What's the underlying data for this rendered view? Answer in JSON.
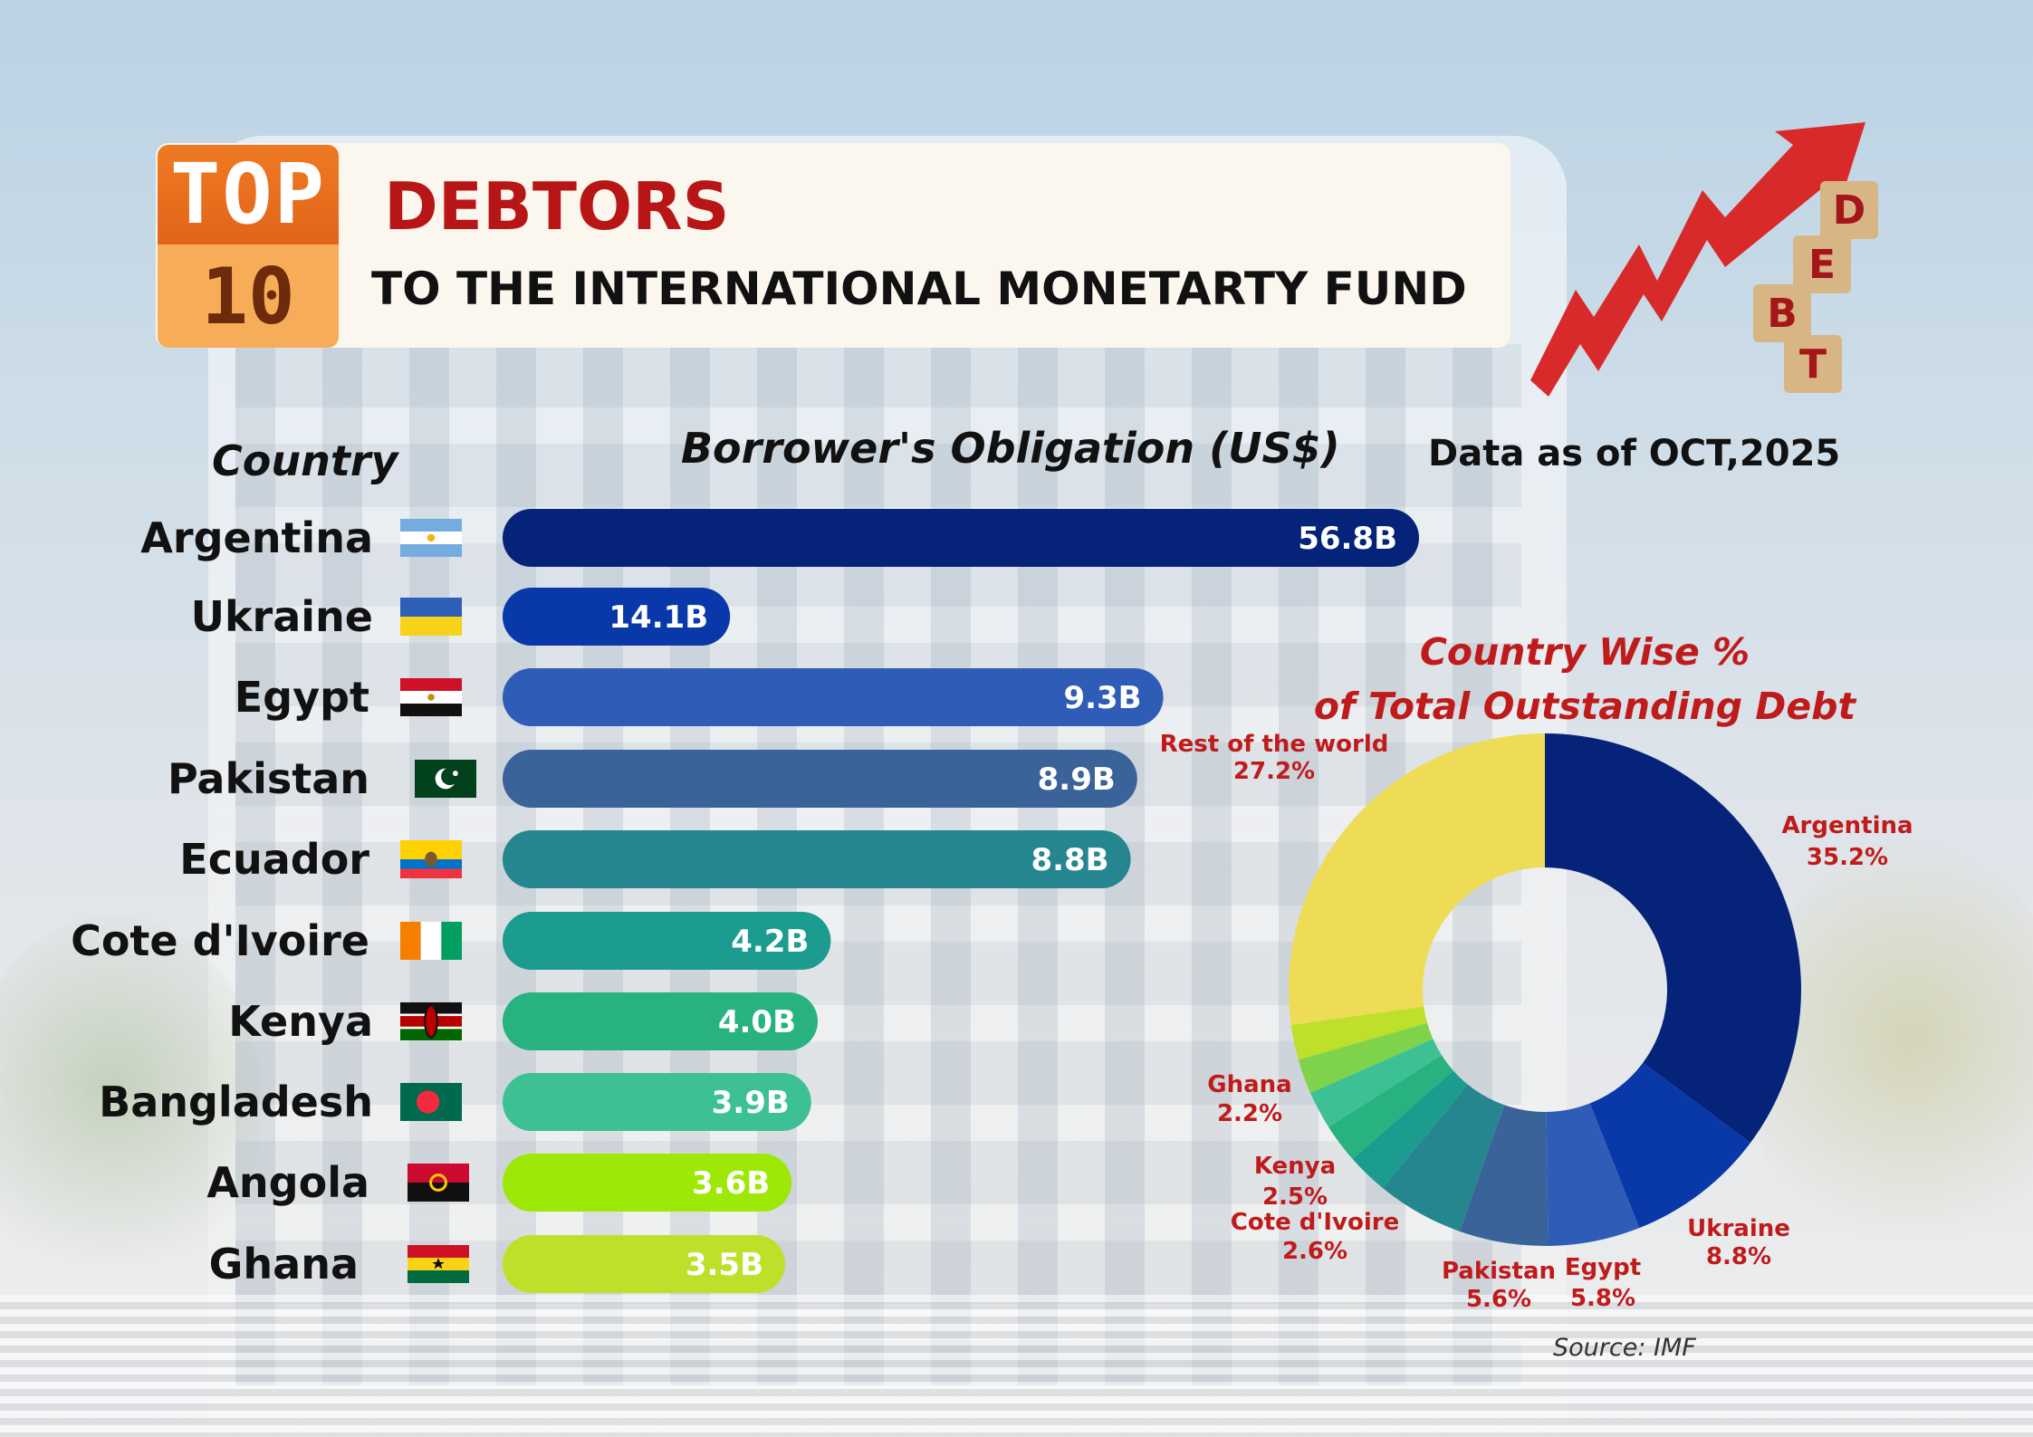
{
  "header": {
    "badge_top": "TOP",
    "badge_bottom": "10",
    "title": "DEBTORS",
    "subtitle": "TO THE INTERNATIONAL MONETARTY FUND"
  },
  "labels": {
    "country_header": "Country",
    "obligation_header": "Borrower's Obligation (US$)",
    "data_date": "Data as of OCT,2025",
    "pie_title_line1": "Country Wise %",
    "pie_title_line2": "of  Total Outstanding Debt",
    "source": "Source: IMF"
  },
  "debt_art": {
    "letters": [
      "D",
      "E",
      "B",
      "T"
    ],
    "arrow_color": "#d82a2a",
    "block_color": "#d8b585",
    "letter_color": "#a5161a"
  },
  "chart_data": [
    {
      "type": "bar",
      "orientation": "horizontal",
      "title": "Borrower's Obligation (US$)",
      "categories": [
        "Argentina",
        "Ukraine",
        "Egypt",
        "Pakistan",
        "Ecuador",
        "Cote d'Ivoire",
        "Kenya",
        "Bangladesh",
        "Angola",
        "Ghana"
      ],
      "values": [
        56.8,
        14.1,
        9.3,
        8.9,
        8.8,
        4.2,
        4.0,
        3.9,
        3.6,
        3.5
      ],
      "value_labels": [
        "56.8B",
        "14.1B",
        "9.3B",
        "8.9B",
        "8.8B",
        "4.2B",
        "4.0B",
        "3.9B",
        "3.6B",
        "3.5B"
      ],
      "colors": [
        "#06237a",
        "#0938a8",
        "#2f5cb6",
        "#3a6399",
        "#258690",
        "#1c9c8e",
        "#27b27f",
        "#3dc194",
        "#9de807",
        "#bfe02a"
      ],
      "flags": [
        "argentina-flag",
        "ukraine-flag",
        "egypt-flag",
        "pakistan-flag",
        "ecuador-flag",
        "cote-divoire-flag",
        "kenya-flag",
        "bangladesh-flag",
        "angola-flag",
        "ghana-flag"
      ]
    },
    {
      "type": "pie",
      "style": "donut",
      "title": "Country Wise % of  Total Outstanding Debt",
      "slices": [
        {
          "label": "Argentina",
          "value": 35.2,
          "text": "35.2%",
          "color": "#06237a"
        },
        {
          "label": "Ukraine",
          "value": 8.8,
          "text": "8.8%",
          "color": "#0938a8"
        },
        {
          "label": "Egypt",
          "value": 5.8,
          "text": "5.8%",
          "color": "#2f5cb6"
        },
        {
          "label": "Pakistan",
          "value": 5.6,
          "text": "5.6%",
          "color": "#3a6399"
        },
        {
          "label": "Ecuador",
          "value": 5.5,
          "text": "",
          "color": "#258690"
        },
        {
          "label": "Cote d'Ivoire",
          "value": 2.6,
          "text": "2.6%",
          "color": "#1c9c8e"
        },
        {
          "label": "Kenya",
          "value": 2.5,
          "text": "2.5%",
          "color": "#27b27f"
        },
        {
          "label": "Bangladesh",
          "value": 2.4,
          "text": "",
          "color": "#3dc194"
        },
        {
          "label": "Angola",
          "value": 2.2,
          "text": "",
          "color": "#7fd34a"
        },
        {
          "label": "Ghana",
          "value": 2.2,
          "text": "2.2%",
          "color": "#bfe02a"
        },
        {
          "label": "Rest of the world",
          "value": 27.2,
          "text": "27.2%",
          "color": "#eedb56"
        }
      ],
      "label_color": "#c01b1b"
    }
  ]
}
